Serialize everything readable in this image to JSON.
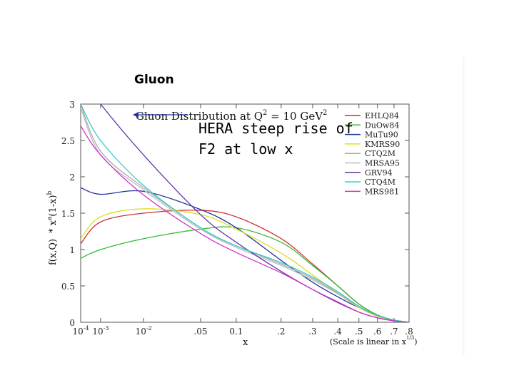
{
  "slide": {
    "title": "Gluon",
    "note_line1": "HERA steep rise of",
    "note_line2": "F2 at low x"
  },
  "chart_data": {
    "type": "line",
    "title": "Gluon Distribution at Q² = 10 GeV²",
    "title_parts": {
      "main": "Gluon Distribution at Q",
      "sup1": "2",
      "mid": " = 10 GeV",
      "sup2": "2"
    },
    "ylabel": "f(x,Q) * x^a (1-x)^b",
    "ylabel_parts": {
      "a": "f(x,Q)",
      "b": "* x",
      "c": "a",
      "d": "(1-x)",
      "e": "b"
    },
    "xlabel": "x",
    "x_note": "(Scale is linear in x^{1/3})",
    "x_note_parts": {
      "main": "(Scale is linear in x",
      "sup": "1/3",
      "close": ")"
    },
    "x_scale": "linear in x^(1/3)",
    "xlim": [
      0.0001,
      0.8
    ],
    "ylim": [
      0,
      3
    ],
    "x_ticks": [
      {
        "v": 0.0001,
        "label": "10",
        "sup": "-4"
      },
      {
        "v": 0.001,
        "label": "10",
        "sup": "-3"
      },
      {
        "v": 0.01,
        "label": "10",
        "sup": "-2"
      },
      {
        "v": 0.05,
        "label": ".05"
      },
      {
        "v": 0.1,
        "label": "0.1"
      },
      {
        "v": 0.2,
        "label": ".2"
      },
      {
        "v": 0.3,
        "label": ".3"
      },
      {
        "v": 0.4,
        "label": ".4"
      },
      {
        "v": 0.5,
        "label": ".5"
      },
      {
        "v": 0.6,
        "label": ".6"
      },
      {
        "v": 0.7,
        "label": ".7"
      },
      {
        "v": 0.8,
        "label": ".8"
      }
    ],
    "y_ticks": [
      {
        "v": 0,
        "label": "0"
      },
      {
        "v": 0.5,
        "label": "0.5"
      },
      {
        "v": 1,
        "label": "1"
      },
      {
        "v": 1.5,
        "label": "1.5"
      },
      {
        "v": 2,
        "label": "2"
      },
      {
        "v": 2.5,
        "label": "2.5"
      },
      {
        "v": 3,
        "label": "3"
      }
    ],
    "grid": false,
    "legend_position": "top-right",
    "series": [
      {
        "name": "EHLQ84",
        "color": "#cc3333",
        "points": [
          [
            0.0001,
            1.08
          ],
          [
            0.001,
            1.38
          ],
          [
            0.01,
            1.5
          ],
          [
            0.05,
            1.54
          ],
          [
            0.1,
            1.45
          ],
          [
            0.2,
            1.15
          ],
          [
            0.3,
            0.8
          ],
          [
            0.4,
            0.5
          ],
          [
            0.5,
            0.25
          ],
          [
            0.6,
            0.1
          ],
          [
            0.7,
            0.03
          ],
          [
            0.8,
            0.0
          ]
        ]
      },
      {
        "name": "DuOw84",
        "color": "#33bb33",
        "points": [
          [
            0.0001,
            0.88
          ],
          [
            0.001,
            1.0
          ],
          [
            0.01,
            1.15
          ],
          [
            0.05,
            1.28
          ],
          [
            0.1,
            1.3
          ],
          [
            0.2,
            1.1
          ],
          [
            0.3,
            0.78
          ],
          [
            0.4,
            0.5
          ],
          [
            0.5,
            0.25
          ],
          [
            0.6,
            0.1
          ],
          [
            0.7,
            0.03
          ],
          [
            0.8,
            0.0
          ]
        ]
      },
      {
        "name": "MuTu90",
        "color": "#223399",
        "points": [
          [
            0.0001,
            1.85
          ],
          [
            0.001,
            1.76
          ],
          [
            0.01,
            1.8
          ],
          [
            0.05,
            1.55
          ],
          [
            0.1,
            1.3
          ],
          [
            0.2,
            0.85
          ],
          [
            0.3,
            0.55
          ],
          [
            0.4,
            0.35
          ],
          [
            0.5,
            0.2
          ],
          [
            0.6,
            0.09
          ],
          [
            0.7,
            0.03
          ],
          [
            0.8,
            0.0
          ]
        ]
      },
      {
        "name": "KMRS90",
        "color": "#dddd22",
        "points": [
          [
            0.0001,
            1.15
          ],
          [
            0.001,
            1.45
          ],
          [
            0.01,
            1.56
          ],
          [
            0.05,
            1.48
          ],
          [
            0.1,
            1.28
          ],
          [
            0.2,
            0.95
          ],
          [
            0.3,
            0.65
          ],
          [
            0.4,
            0.4
          ],
          [
            0.5,
            0.2
          ],
          [
            0.6,
            0.08
          ],
          [
            0.7,
            0.02
          ],
          [
            0.8,
            0.0
          ]
        ]
      },
      {
        "name": "CTQ2M",
        "color": "#aaaaaa",
        "points": [
          [
            0.0001,
            3.0
          ],
          [
            0.001,
            2.35
          ],
          [
            0.01,
            1.85
          ],
          [
            0.05,
            1.3
          ],
          [
            0.1,
            1.05
          ],
          [
            0.2,
            0.8
          ],
          [
            0.3,
            0.6
          ],
          [
            0.4,
            0.4
          ],
          [
            0.5,
            0.22
          ],
          [
            0.6,
            0.09
          ],
          [
            0.7,
            0.03
          ],
          [
            0.8,
            0.0
          ]
        ]
      },
      {
        "name": "MRSA95",
        "color": "#bbbbbb",
        "points": [
          [
            0.0001,
            2.95
          ],
          [
            0.001,
            2.3
          ],
          [
            0.01,
            1.82
          ],
          [
            0.05,
            1.28
          ],
          [
            0.1,
            1.03
          ],
          [
            0.2,
            0.78
          ],
          [
            0.3,
            0.58
          ],
          [
            0.4,
            0.39
          ],
          [
            0.5,
            0.21
          ],
          [
            0.6,
            0.09
          ],
          [
            0.7,
            0.03
          ],
          [
            0.8,
            0.0
          ]
        ]
      },
      {
        "name": "GRV94",
        "color": "#6633aa",
        "points": [
          [
            0.0001,
            3.4
          ],
          [
            0.001,
            3.0
          ],
          [
            0.01,
            2.3
          ],
          [
            0.05,
            1.48
          ],
          [
            0.1,
            1.1
          ],
          [
            0.2,
            0.7
          ],
          [
            0.3,
            0.45
          ],
          [
            0.4,
            0.27
          ],
          [
            0.5,
            0.14
          ],
          [
            0.6,
            0.06
          ],
          [
            0.7,
            0.02
          ],
          [
            0.8,
            0.0
          ]
        ]
      },
      {
        "name": "CTQ4M",
        "color": "#33cccc",
        "points": [
          [
            0.0001,
            3.0
          ],
          [
            0.001,
            2.5
          ],
          [
            0.01,
            1.88
          ],
          [
            0.05,
            1.3
          ],
          [
            0.1,
            1.05
          ],
          [
            0.2,
            0.82
          ],
          [
            0.3,
            0.62
          ],
          [
            0.4,
            0.42
          ],
          [
            0.5,
            0.22
          ],
          [
            0.6,
            0.09
          ],
          [
            0.7,
            0.03
          ],
          [
            0.8,
            0.0
          ]
        ]
      },
      {
        "name": "MRS981",
        "color": "#cc33cc",
        "points": [
          [
            0.0001,
            2.7
          ],
          [
            0.001,
            2.3
          ],
          [
            0.01,
            1.75
          ],
          [
            0.05,
            1.22
          ],
          [
            0.1,
            0.96
          ],
          [
            0.2,
            0.68
          ],
          [
            0.3,
            0.45
          ],
          [
            0.4,
            0.28
          ],
          [
            0.5,
            0.14
          ],
          [
            0.6,
            0.06
          ],
          [
            0.7,
            0.02
          ],
          [
            0.8,
            0.0
          ]
        ]
      }
    ]
  }
}
